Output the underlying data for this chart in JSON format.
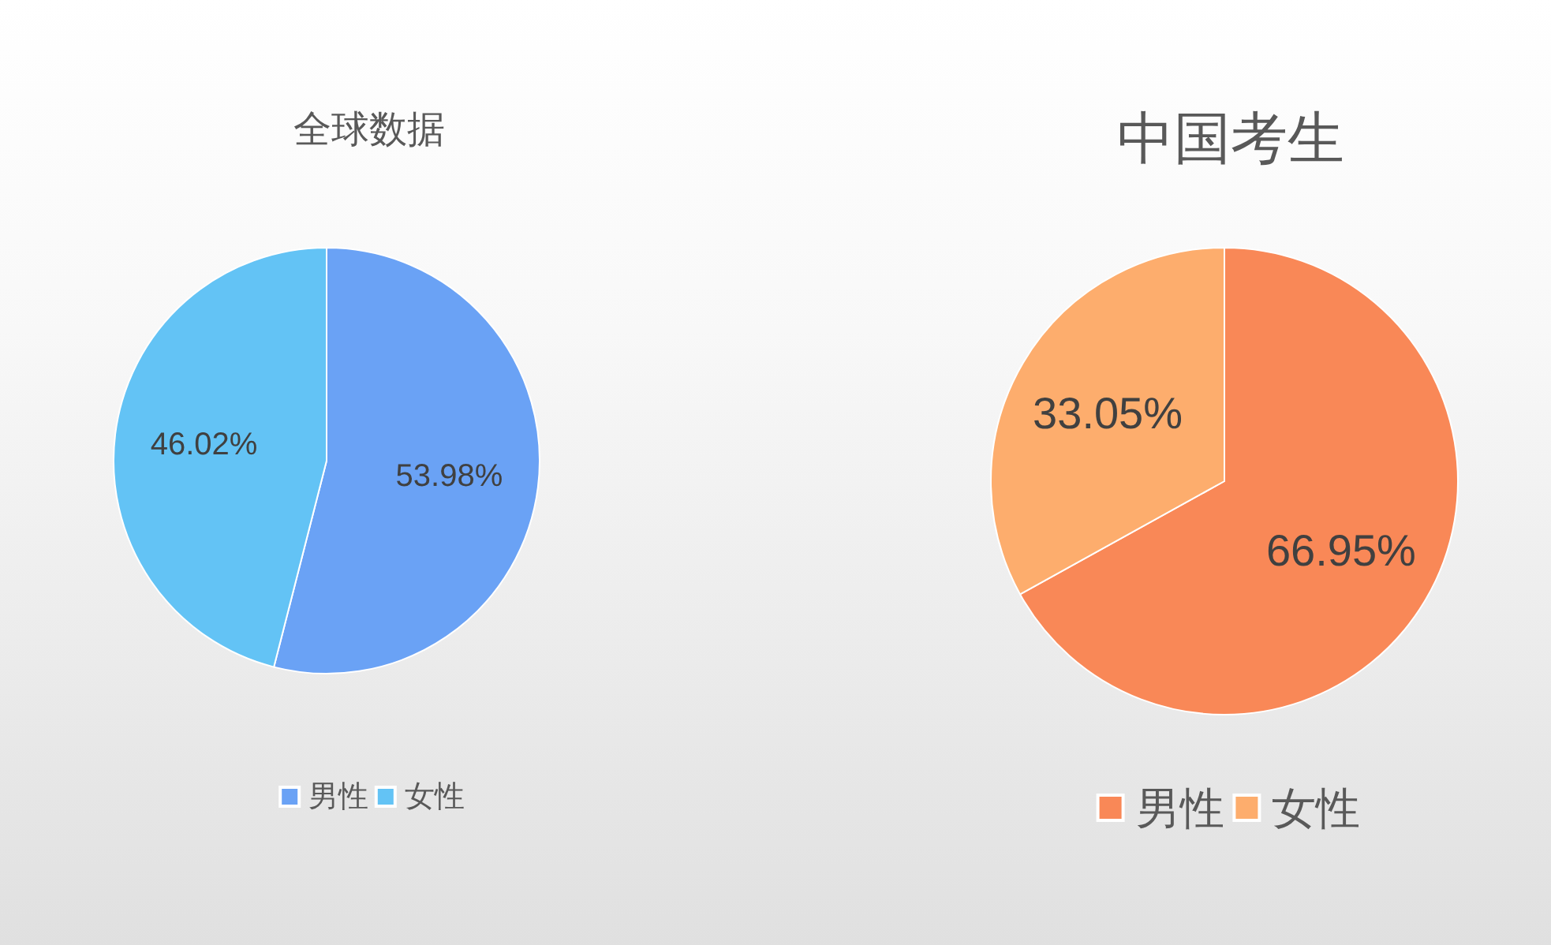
{
  "chart_data": [
    {
      "type": "pie",
      "title": "全球数据",
      "categories": [
        "男性",
        "女性"
      ],
      "values": [
        53.98,
        46.02
      ],
      "colors": [
        "#6aa2f5",
        "#63c3f5"
      ],
      "value_labels": [
        "53.98%",
        "46.02%"
      ],
      "legend": "bottom"
    },
    {
      "type": "pie",
      "title": "中国考生",
      "categories": [
        "男性",
        "女性"
      ],
      "values": [
        66.95,
        33.05
      ],
      "colors": [
        "#f98857",
        "#fdad6d"
      ],
      "value_labels": [
        "66.95%",
        "33.05%"
      ],
      "legend": "bottom"
    }
  ]
}
